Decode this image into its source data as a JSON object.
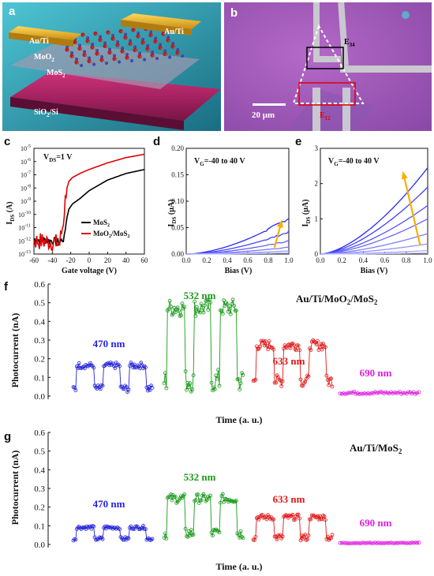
{
  "panels": {
    "a": {
      "label": "a",
      "layers": [
        "Au/Ti",
        "Au/Ti",
        "MoO",
        "2",
        "MoS",
        "2",
        "SiO",
        "2",
        "/Si"
      ]
    },
    "b": {
      "label": "b",
      "e34": "E",
      "e34sub": "34",
      "e12": "E",
      "e12sub": "12",
      "scalebar": "20 μm"
    },
    "c": {
      "label": "c",
      "annotation": "V",
      "annotation_sub": "DS",
      "annotation_rest": "=1 V",
      "ylabel": "I",
      "ylabel_sub": "DS",
      "ylabel_rest": " (A)",
      "xlabel": "Gate voltage (V)",
      "legend": [
        {
          "name": "MoS",
          "sub": "2",
          "color": "#000000"
        },
        {
          "name": "MoO",
          "sub": "2",
          "rest": "/MoS",
          "sub2": "2",
          "color": "#e00000"
        }
      ]
    },
    "d": {
      "label": "d",
      "annotation": "V",
      "annotation_sub": "G",
      "annotation_rest": "=-40 to 40 V",
      "ylabel": "I",
      "ylabel_sub": "DS",
      "ylabel_rest": " (μA)",
      "xlabel": "Bias (V)"
    },
    "e": {
      "label": "e",
      "annotation": "V",
      "annotation_sub": "G",
      "annotation_rest": "=-40 to 40 V",
      "ylabel": "I",
      "ylabel_sub": "DS",
      "ylabel_rest": " (μA)",
      "xlabel": "Bias (V)"
    },
    "f": {
      "label": "f",
      "device": "Au/Ti/MoO",
      "device_sub": "2",
      "device_rest": "/MoS",
      "device_sub2": "2",
      "ylabel": "Photocurrent (nA)",
      "xlabel": "Time (a. u.)"
    },
    "g": {
      "label": "g",
      "device": "Au/Ti/MoS",
      "device_sub": "2",
      "ylabel": "Photocurrent (nA)",
      "xlabel": "Time (a. u.)"
    }
  },
  "colors": {
    "470": "#2525d8",
    "532": "#1a9a1a",
    "633": "#e01818",
    "690": "#e020e0",
    "blue": "#1010e0",
    "arrow": "#f5b000"
  },
  "chart_data": [
    {
      "id": "c",
      "type": "line",
      "xlim": [
        -60,
        60
      ],
      "ylim_log10": [
        -13,
        -5
      ],
      "xticks": [
        -60,
        -40,
        -20,
        0,
        20,
        40,
        60
      ],
      "yticks_exp": [
        -13,
        -12,
        -11,
        -10,
        -9,
        -8,
        -7,
        -6,
        -5
      ],
      "series": [
        {
          "name": "MoS2",
          "x": [
            -60,
            -40,
            -32,
            -27,
            -25,
            -22,
            -18,
            -10,
            0,
            20,
            40,
            60
          ],
          "y_log10": [
            -11.9,
            -12.0,
            -12.1,
            -11.8,
            -10.5,
            -9.6,
            -9.2,
            -8.8,
            -8.2,
            -7.4,
            -6.9,
            -6.6
          ]
        },
        {
          "name": "MoO2/MoS2",
          "x": [
            -60,
            -40,
            -32,
            -28,
            -25,
            -22,
            -18,
            -10,
            0,
            20,
            40,
            60
          ],
          "y_log10": [
            -12.0,
            -12.1,
            -12.2,
            -10.5,
            -8.2,
            -7.5,
            -7.2,
            -6.9,
            -6.6,
            -6.1,
            -5.7,
            -5.45
          ]
        }
      ]
    },
    {
      "id": "d",
      "type": "line",
      "xlim": [
        0,
        1.0
      ],
      "ylim": [
        0,
        0.2
      ],
      "xticks": [
        0.0,
        0.2,
        0.4,
        0.6,
        0.8,
        1.0
      ],
      "yticks": [
        0.0,
        0.05,
        0.1,
        0.15,
        0.2
      ],
      "series_end_values": [
        0.068,
        0.042,
        0.025,
        0.013,
        0.006,
        0.002
      ]
    },
    {
      "id": "e",
      "type": "line",
      "xlim": [
        0,
        1.0
      ],
      "ylim": [
        0,
        3
      ],
      "xticks": [
        0.0,
        0.2,
        0.4,
        0.6,
        0.8,
        1.0
      ],
      "yticks": [
        0,
        1,
        2,
        3
      ],
      "series_end_values": [
        2.45,
        1.9,
        1.38,
        1.0,
        0.58,
        0.29,
        0.1,
        0.03
      ]
    },
    {
      "id": "f",
      "type": "scatter",
      "ylim": [
        0,
        0.6
      ],
      "yticks": [
        0.0,
        0.1,
        0.2,
        0.3,
        0.4,
        0.5,
        0.6
      ],
      "series": [
        {
          "name": "470 nm",
          "base": 0.02,
          "peak": 0.18,
          "pulses": 3
        },
        {
          "name": "532 nm",
          "base": 0.02,
          "peak": 0.52,
          "pulses": 3
        },
        {
          "name": "633 nm",
          "base": 0.05,
          "peak": 0.3,
          "pulses": 3
        },
        {
          "name": "690 nm",
          "base": 0.01,
          "peak": 0.025,
          "pulses": 0
        }
      ]
    },
    {
      "id": "g",
      "type": "scatter",
      "ylim": [
        0,
        0.6
      ],
      "yticks": [
        0.0,
        0.1,
        0.2,
        0.3,
        0.4,
        0.5,
        0.6
      ],
      "series": [
        {
          "name": "470 nm",
          "base": 0.02,
          "peak": 0.1,
          "pulses": 3
        },
        {
          "name": "532 nm",
          "base": 0.03,
          "peak": 0.27,
          "pulses": 3
        },
        {
          "name": "633 nm",
          "base": 0.02,
          "peak": 0.16,
          "pulses": 3
        },
        {
          "name": "690 nm",
          "base": 0.005,
          "peak": 0.01,
          "pulses": 0
        }
      ]
    }
  ]
}
